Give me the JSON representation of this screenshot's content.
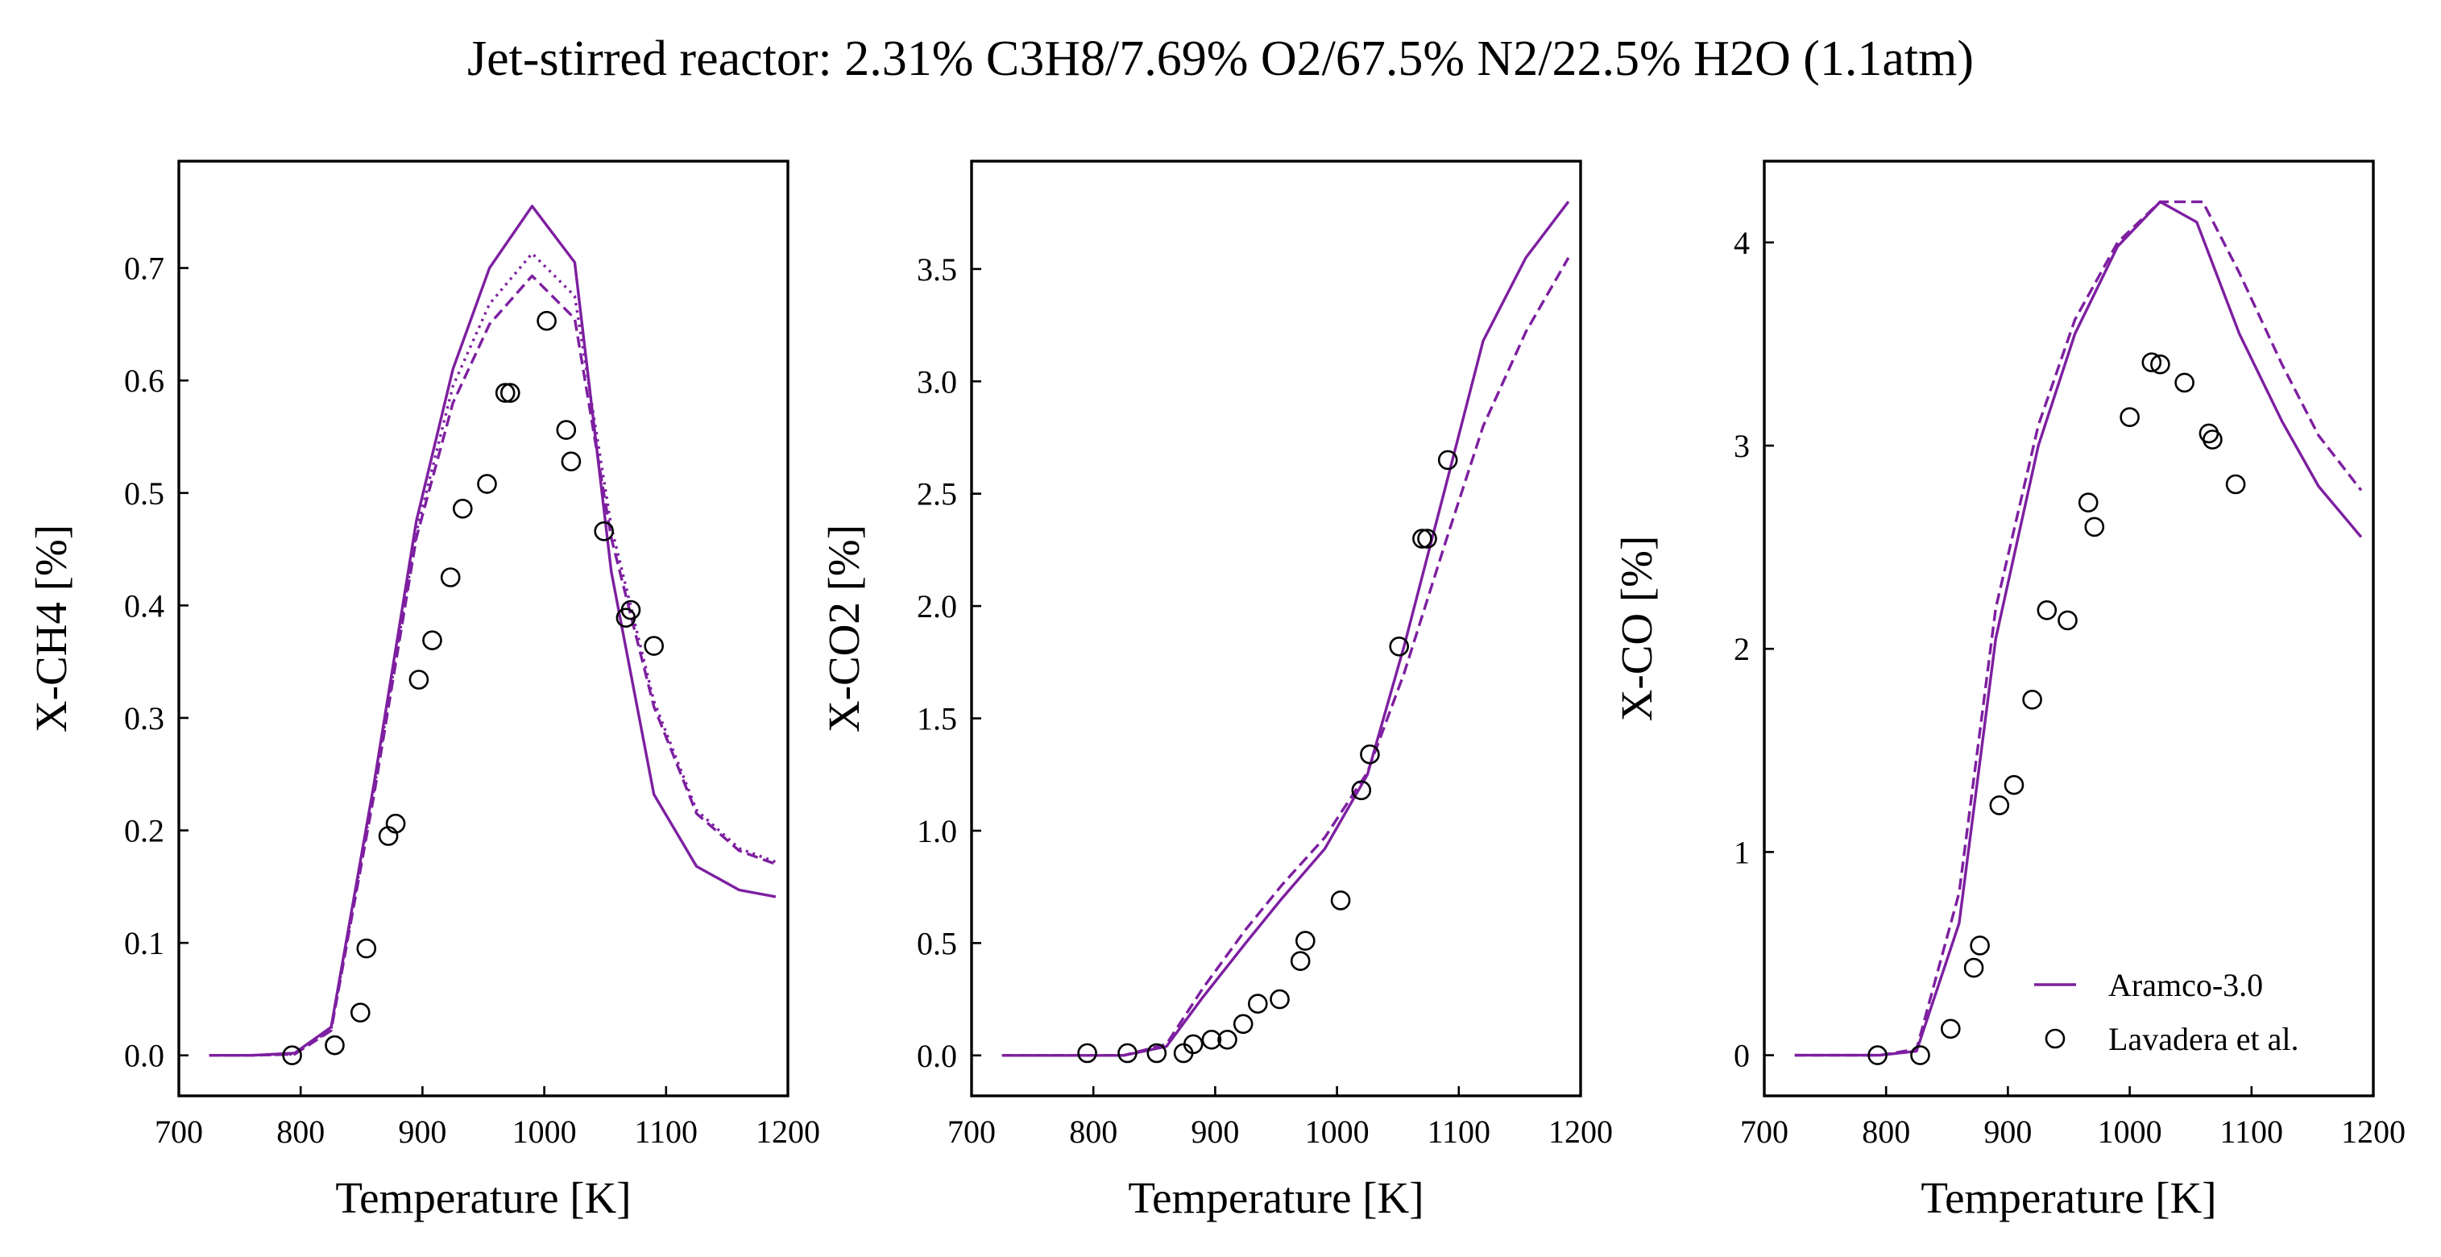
{
  "suptitle": "Jet-stirred reactor: 2.31% C3H8/7.69% O2/67.5% N2/22.5% H2O (1.1atm)",
  "colors": {
    "model": "#7d1fa0",
    "experiment": "#000000",
    "axes": "#000000"
  },
  "legend": {
    "placement": "lower-right of third panel",
    "entries": [
      {
        "label": "Aramco-3.0",
        "style": "solid-line"
      },
      {
        "label": "Lavadera et al.",
        "style": "open-circle"
      }
    ]
  },
  "chart_data": [
    {
      "type": "line",
      "xlabel": "Temperature [K]",
      "ylabel": "X-CH4 [%]",
      "xlim": [
        700,
        1200
      ],
      "ylim": [
        -0.036,
        0.795
      ],
      "xticks": [
        700,
        800,
        900,
        1000,
        1100,
        1200
      ],
      "xtick_labels": [
        "700",
        "800",
        "900",
        "1000",
        "1100",
        "1200"
      ],
      "yticks": [
        0.0,
        0.1,
        0.2,
        0.3,
        0.4,
        0.5,
        0.6,
        0.7
      ],
      "ytick_labels": [
        "0.0",
        "0.1",
        "0.2",
        "0.3",
        "0.4",
        "0.5",
        "0.6",
        "0.7"
      ],
      "series": [
        {
          "name": "Aramco-3.0",
          "style": "solid",
          "x": [
            725,
            760,
            795,
            825,
            860,
            895,
            925,
            955,
            990,
            1025,
            1055,
            1090,
            1125,
            1160,
            1190
          ],
          "y": [
            0.0,
            0.0,
            0.002,
            0.025,
            0.24,
            0.475,
            0.61,
            0.7,
            0.755,
            0.705,
            0.43,
            0.232,
            0.168,
            0.147,
            0.141
          ]
        },
        {
          "style": "dashed",
          "x": [
            725,
            760,
            795,
            825,
            860,
            895,
            925,
            955,
            990,
            1025,
            1055,
            1090,
            1125,
            1160,
            1190
          ],
          "y": [
            0.0,
            0.0,
            0.001,
            0.022,
            0.23,
            0.46,
            0.58,
            0.65,
            0.693,
            0.655,
            0.46,
            0.31,
            0.215,
            0.182,
            0.17
          ]
        },
        {
          "style": "dotted",
          "x": [
            725,
            760,
            795,
            825,
            860,
            895,
            925,
            955,
            990,
            1025,
            1055,
            1090,
            1125,
            1160,
            1190
          ],
          "y": [
            0.0,
            0.0,
            0.001,
            0.023,
            0.235,
            0.465,
            0.595,
            0.668,
            0.713,
            0.675,
            0.47,
            0.315,
            0.218,
            0.184,
            0.172
          ]
        },
        {
          "name": "Lavadera et al.",
          "style": "markers",
          "x": [
            793,
            828,
            849,
            854,
            872,
            878,
            897,
            908,
            923,
            933,
            953,
            968,
            972,
            1002,
            1018,
            1022,
            1049,
            1067,
            1071,
            1090
          ],
          "y": [
            0.0,
            0.009,
            0.038,
            0.095,
            0.195,
            0.206,
            0.334,
            0.369,
            0.425,
            0.486,
            0.508,
            0.589,
            0.589,
            0.653,
            0.556,
            0.528,
            0.466,
            0.389,
            0.396,
            0.364
          ]
        }
      ]
    },
    {
      "type": "line",
      "xlabel": "Temperature [K]",
      "ylabel": "X-CO2 [%]",
      "xlim": [
        700,
        1200
      ],
      "ylim": [
        -0.18,
        3.98
      ],
      "xticks": [
        700,
        800,
        900,
        1000,
        1100,
        1200
      ],
      "xtick_labels": [
        "700",
        "800",
        "900",
        "1000",
        "1100",
        "1200"
      ],
      "yticks": [
        0.0,
        0.5,
        1.0,
        1.5,
        2.0,
        2.5,
        3.0,
        3.5
      ],
      "ytick_labels": [
        "0.0",
        "0.5",
        "1.0",
        "1.5",
        "2.0",
        "2.5",
        "3.0",
        "3.5"
      ],
      "series": [
        {
          "name": "Aramco-3.0",
          "style": "solid",
          "x": [
            725,
            760,
            795,
            825,
            860,
            890,
            925,
            955,
            990,
            1025,
            1055,
            1090,
            1120,
            1155,
            1190
          ],
          "y": [
            0.0,
            0.0,
            0.0,
            0.0,
            0.04,
            0.26,
            0.5,
            0.7,
            0.92,
            1.25,
            1.82,
            2.55,
            3.18,
            3.55,
            3.8
          ]
        },
        {
          "style": "dashed",
          "x": [
            725,
            760,
            795,
            825,
            860,
            890,
            925,
            955,
            990,
            1025,
            1055,
            1090,
            1120,
            1155,
            1190
          ],
          "y": [
            0.0,
            0.0,
            0.0,
            0.0,
            0.05,
            0.3,
            0.56,
            0.76,
            0.97,
            1.26,
            1.7,
            2.3,
            2.8,
            3.22,
            3.55
          ]
        },
        {
          "name": "Lavadera et al.",
          "style": "markers",
          "x": [
            795,
            828,
            852,
            874,
            882,
            897,
            910,
            923,
            935,
            953,
            970,
            974,
            1003,
            1020,
            1027,
            1051,
            1070,
            1074,
            1091
          ],
          "y": [
            0.01,
            0.01,
            0.01,
            0.01,
            0.05,
            0.07,
            0.07,
            0.14,
            0.23,
            0.25,
            0.42,
            0.51,
            0.69,
            1.18,
            1.34,
            1.82,
            2.3,
            2.3,
            2.65
          ]
        }
      ]
    },
    {
      "type": "line",
      "xlabel": "Temperature [K]",
      "ylabel": "X-CO [%]",
      "xlim": [
        700,
        1200
      ],
      "ylim": [
        -0.2,
        4.4
      ],
      "xticks": [
        700,
        800,
        900,
        1000,
        1100,
        1200
      ],
      "xtick_labels": [
        "700",
        "800",
        "900",
        "1000",
        "1100",
        "1200"
      ],
      "yticks": [
        0,
        1,
        2,
        3,
        4
      ],
      "ytick_labels": [
        "0",
        "1",
        "2",
        "3",
        "4"
      ],
      "series": [
        {
          "name": "Aramco-3.0",
          "style": "solid",
          "x": [
            725,
            760,
            795,
            825,
            860,
            890,
            925,
            955,
            990,
            1025,
            1055,
            1090,
            1125,
            1155,
            1190
          ],
          "y": [
            0.0,
            0.0,
            0.0,
            0.02,
            0.65,
            2.05,
            3.0,
            3.55,
            3.98,
            4.2,
            4.1,
            3.55,
            3.12,
            2.8,
            2.55
          ]
        },
        {
          "style": "dashed",
          "x": [
            725,
            760,
            795,
            825,
            860,
            890,
            925,
            955,
            990,
            1025,
            1060,
            1090,
            1125,
            1155,
            1190
          ],
          "y": [
            0.0,
            0.0,
            0.0,
            0.03,
            0.8,
            2.2,
            3.1,
            3.62,
            4.0,
            4.2,
            4.2,
            3.85,
            3.4,
            3.05,
            2.78
          ]
        },
        {
          "name": "Lavadera et al.",
          "style": "markers",
          "x": [
            793,
            828,
            853,
            872,
            877,
            893,
            905,
            920,
            932,
            949,
            966,
            971,
            1000,
            1018,
            1025,
            1045,
            1065,
            1068,
            1087
          ],
          "y": [
            0.0,
            0.0,
            0.13,
            0.43,
            0.54,
            1.23,
            1.33,
            1.75,
            2.19,
            2.14,
            2.72,
            2.6,
            3.14,
            3.41,
            3.4,
            3.31,
            3.06,
            3.03,
            2.81
          ]
        }
      ]
    }
  ]
}
